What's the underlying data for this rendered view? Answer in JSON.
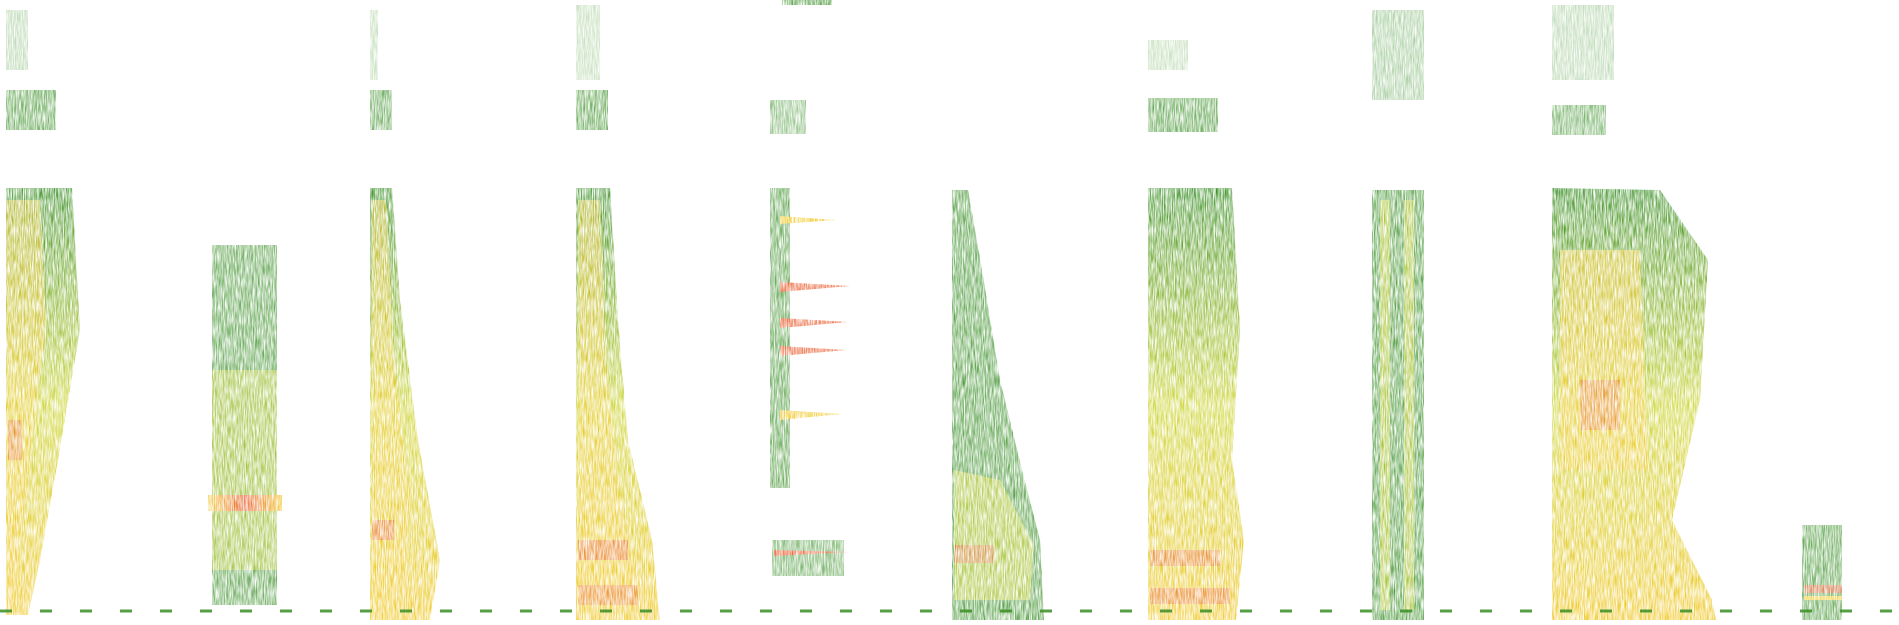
{
  "figure": {
    "kind": "spectrogram",
    "background": "#ffffff",
    "palette": {
      "low": "#2f8a1c",
      "mid": "#c9d22a",
      "high": "#f0c419",
      "peak": "#e8501e"
    },
    "baseline_color": "#3a8f24",
    "segment_count": 12
  }
}
